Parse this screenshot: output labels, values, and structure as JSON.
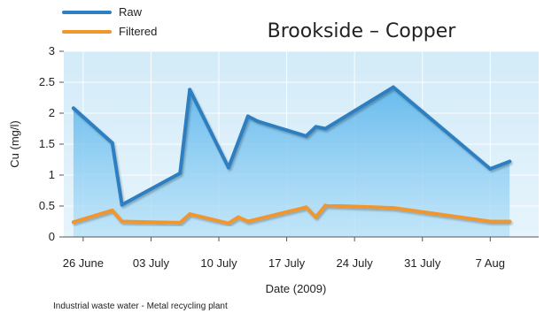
{
  "chart_data": {
    "type": "line",
    "title": "Brookside – Copper",
    "xlabel": "Date (2009)",
    "ylabel": "Cu (mg/l)",
    "footnote": "Industrial waste water - Metal recycling plant",
    "ylim": [
      0,
      3
    ],
    "xlim": [
      "2009-06-24",
      "2009-08-12"
    ],
    "yticks": [
      "0",
      "0.5",
      "1",
      "1.5",
      "2",
      "2.5",
      "3"
    ],
    "xticks": [
      {
        "date": "2009-06-26",
        "label": "26 June"
      },
      {
        "date": "2009-07-03",
        "label": "03 July"
      },
      {
        "date": "2009-07-10",
        "label": "10 July"
      },
      {
        "date": "2009-07-17",
        "label": "17 July"
      },
      {
        "date": "2009-07-24",
        "label": "24 July"
      },
      {
        "date": "2009-07-31",
        "label": "31 July"
      },
      {
        "date": "2009-08-07",
        "label": "7 Aug"
      }
    ],
    "grid": true,
    "legend": "top-left",
    "series": [
      {
        "name": "Raw",
        "color": "#2f7fc1",
        "fill": true,
        "points": [
          {
            "x": "2009-06-25",
            "y": 2.08
          },
          {
            "x": "2009-06-29",
            "y": 1.52
          },
          {
            "x": "2009-06-30",
            "y": 0.52
          },
          {
            "x": "2009-07-06",
            "y": 1.03
          },
          {
            "x": "2009-07-07",
            "y": 2.38
          },
          {
            "x": "2009-07-11",
            "y": 1.12
          },
          {
            "x": "2009-07-13",
            "y": 1.95
          },
          {
            "x": "2009-07-14",
            "y": 1.87
          },
          {
            "x": "2009-07-19",
            "y": 1.63
          },
          {
            "x": "2009-07-20",
            "y": 1.78
          },
          {
            "x": "2009-07-21",
            "y": 1.75
          },
          {
            "x": "2009-07-28",
            "y": 2.42
          },
          {
            "x": "2009-08-07",
            "y": 1.1
          },
          {
            "x": "2009-08-09",
            "y": 1.22
          }
        ]
      },
      {
        "name": "Filtered",
        "color": "#f0962d",
        "fill": false,
        "points": [
          {
            "x": "2009-06-25",
            "y": 0.24
          },
          {
            "x": "2009-06-29",
            "y": 0.43
          },
          {
            "x": "2009-06-30",
            "y": 0.25
          },
          {
            "x": "2009-07-06",
            "y": 0.23
          },
          {
            "x": "2009-07-07",
            "y": 0.37
          },
          {
            "x": "2009-07-11",
            "y": 0.22
          },
          {
            "x": "2009-07-12",
            "y": 0.32
          },
          {
            "x": "2009-07-13",
            "y": 0.25
          },
          {
            "x": "2009-07-19",
            "y": 0.48
          },
          {
            "x": "2009-07-20",
            "y": 0.32
          },
          {
            "x": "2009-07-21",
            "y": 0.51
          },
          {
            "x": "2009-07-28",
            "y": 0.47
          },
          {
            "x": "2009-08-07",
            "y": 0.25
          },
          {
            "x": "2009-08-09",
            "y": 0.25
          }
        ]
      }
    ]
  }
}
